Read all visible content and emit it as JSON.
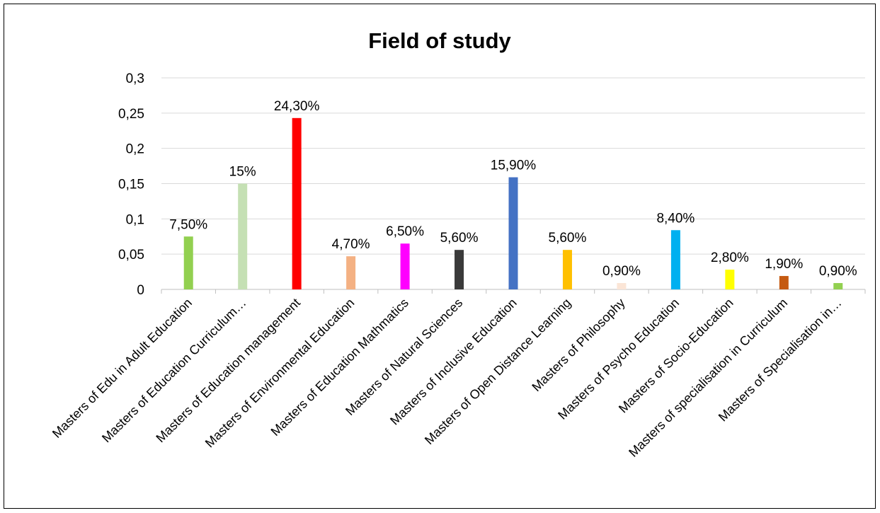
{
  "chart_data": {
    "type": "bar",
    "title": "Field of study",
    "xlabel": "",
    "ylabel": "",
    "ylim": [
      0,
      0.3
    ],
    "yticks": [
      "0",
      "0,05",
      "0,1",
      "0,15",
      "0,2",
      "0,25",
      "0,3"
    ],
    "grid": true,
    "legend": "none",
    "categories": [
      "Masters of Edu in Adult Education",
      "Masters of Education Curriculum…",
      "Masters of Education management",
      "Masters of Environmental Education",
      "Masters of Education Mathmatics",
      "Masters of Natural Sciences",
      "Masters of Inclusive Education",
      "Masters of Open Distance Learning",
      "Masters of Philosophy",
      "Masters of Psycho Education",
      "Masters of Socio-Education",
      "Masters of specialisation in Curriculum",
      "Masters of Specialisation in…"
    ],
    "values": [
      0.075,
      0.15,
      0.243,
      0.047,
      0.065,
      0.056,
      0.159,
      0.056,
      0.009,
      0.084,
      0.028,
      0.019,
      0.009
    ],
    "data_labels": [
      "7,50%",
      "15%",
      "24,30%",
      "4,70%",
      "6,50%",
      "5,60%",
      "15,90%",
      "5,60%",
      "0,90%",
      "8,40%",
      "2,80%",
      "1,90%",
      "0,90%"
    ],
    "colors": [
      "#92d050",
      "#c5e0b4",
      "#ff0000",
      "#f4b183",
      "#ff00ff",
      "#3a3a3a",
      "#4472c4",
      "#ffc000",
      "#fbe5d6",
      "#00b0f0",
      "#ffff00",
      "#c55a11",
      "#92d050"
    ]
  }
}
